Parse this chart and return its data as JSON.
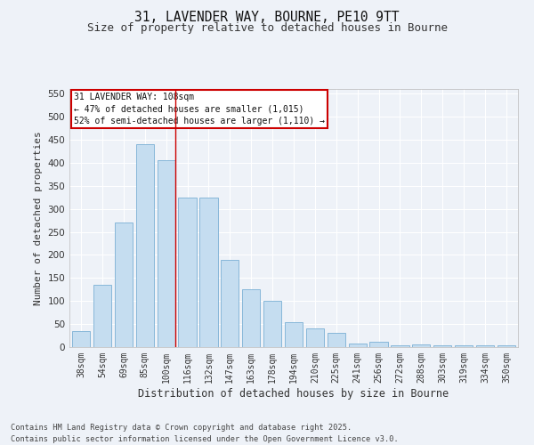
{
  "title_line1": "31, LAVENDER WAY, BOURNE, PE10 9TT",
  "title_line2": "Size of property relative to detached houses in Bourne",
  "xlabel": "Distribution of detached houses by size in Bourne",
  "ylabel": "Number of detached properties",
  "categories": [
    "38sqm",
    "54sqm",
    "69sqm",
    "85sqm",
    "100sqm",
    "116sqm",
    "132sqm",
    "147sqm",
    "163sqm",
    "178sqm",
    "194sqm",
    "210sqm",
    "225sqm",
    "241sqm",
    "256sqm",
    "272sqm",
    "288sqm",
    "303sqm",
    "319sqm",
    "334sqm",
    "350sqm"
  ],
  "values": [
    35,
    135,
    270,
    440,
    405,
    325,
    325,
    190,
    125,
    100,
    55,
    40,
    30,
    8,
    12,
    4,
    5,
    3,
    3,
    3,
    3
  ],
  "bar_color": "#c5ddf0",
  "bar_edge_color": "#7aafd4",
  "red_line_index": 4,
  "annotation_text": "31 LAVENDER WAY: 108sqm\n← 47% of detached houses are smaller (1,015)\n52% of semi-detached houses are larger (1,110) →",
  "annotation_box_color": "#ffffff",
  "annotation_box_edge_color": "#cc0000",
  "ylim": [
    0,
    560
  ],
  "yticks": [
    0,
    50,
    100,
    150,
    200,
    250,
    300,
    350,
    400,
    450,
    500,
    550
  ],
  "background_color": "#eef2f8",
  "grid_color": "#ffffff",
  "footnote": "Contains HM Land Registry data © Crown copyright and database right 2025.\nContains public sector information licensed under the Open Government Licence v3.0."
}
